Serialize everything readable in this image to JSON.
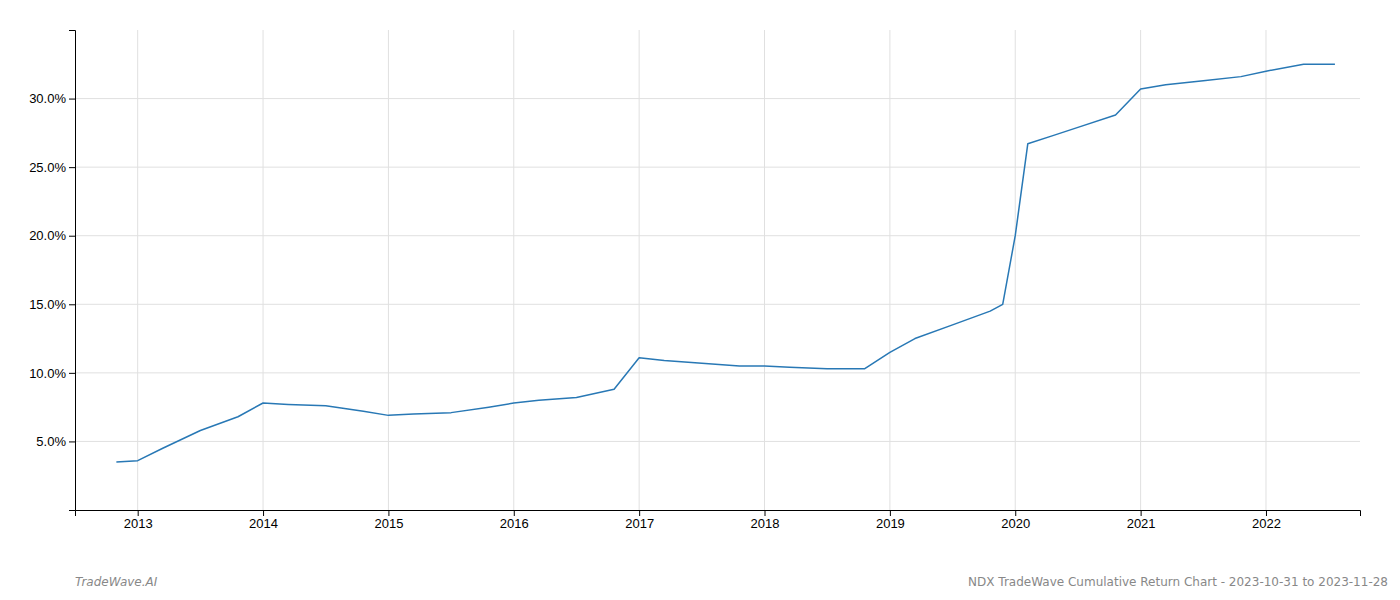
{
  "chart_data": {
    "type": "line",
    "x": [
      2012.83,
      2013.0,
      2013.2,
      2013.5,
      2013.8,
      2014.0,
      2014.2,
      2014.5,
      2014.8,
      2015.0,
      2015.2,
      2015.5,
      2015.8,
      2016.0,
      2016.2,
      2016.5,
      2016.8,
      2017.0,
      2017.2,
      2017.5,
      2017.8,
      2018.0,
      2018.2,
      2018.5,
      2018.8,
      2019.0,
      2019.2,
      2019.5,
      2019.8,
      2019.9,
      2020.0,
      2020.1,
      2020.3,
      2020.5,
      2020.8,
      2021.0,
      2021.2,
      2021.5,
      2021.8,
      2022.0,
      2022.3,
      2022.55
    ],
    "values": [
      3.5,
      3.6,
      4.5,
      5.8,
      6.8,
      7.8,
      7.7,
      7.6,
      7.2,
      6.9,
      7.0,
      7.1,
      7.5,
      7.8,
      8.0,
      8.2,
      8.8,
      11.1,
      10.9,
      10.7,
      10.5,
      10.5,
      10.4,
      10.3,
      10.3,
      11.5,
      12.5,
      13.5,
      14.5,
      15.0,
      20.0,
      26.7,
      27.3,
      27.9,
      28.8,
      30.7,
      31.0,
      31.3,
      31.6,
      32.0,
      32.5,
      32.5
    ],
    "color": "#2878b5",
    "xlim": [
      2012.5,
      2022.75
    ],
    "xticks": [
      2013,
      2014,
      2015,
      2016,
      2017,
      2018,
      2019,
      2020,
      2021,
      2022
    ],
    "ylim": [
      0,
      35
    ],
    "yticks": [
      {
        "value": 5.0,
        "label": "5.0%"
      },
      {
        "value": 10.0,
        "label": "10.0%"
      },
      {
        "value": 15.0,
        "label": "15.0%"
      },
      {
        "value": 20.0,
        "label": "20.0%"
      },
      {
        "value": 25.0,
        "label": "25.0%"
      },
      {
        "value": 30.0,
        "label": "30.0%"
      }
    ],
    "grid": true,
    "annotations": [
      "TradeWave.AI",
      "NDX TradeWave Cumulative Return Chart - 2023-10-31 to 2023-11-28"
    ]
  }
}
